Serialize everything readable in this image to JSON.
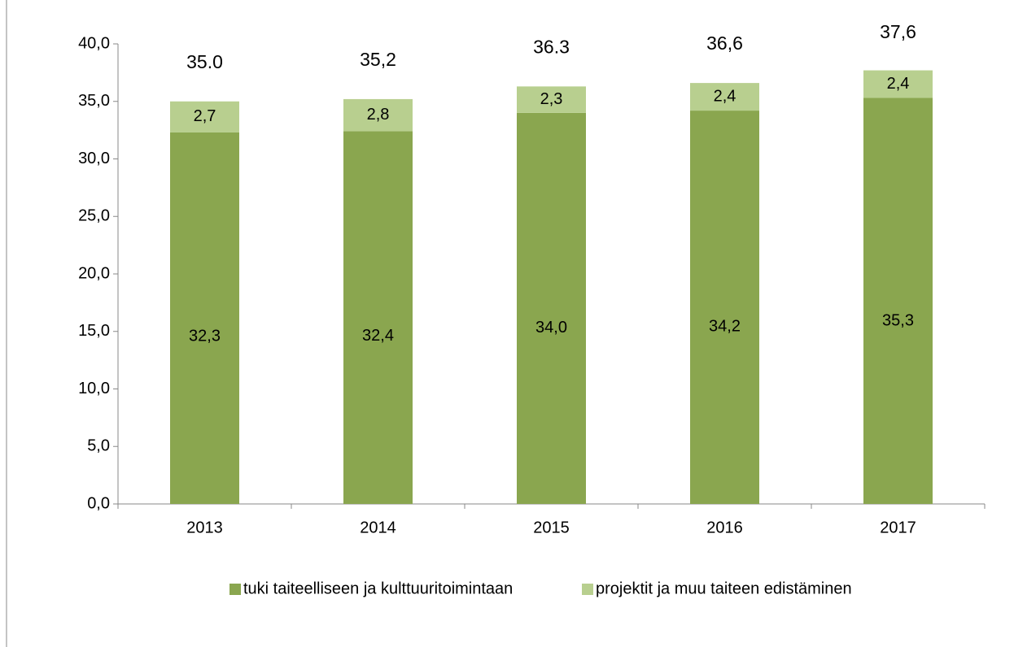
{
  "chart_data": {
    "type": "stacked_bar",
    "categories": [
      "2013",
      "2014",
      "2015",
      "2016",
      "2017"
    ],
    "series": [
      {
        "name": "tuki taiteelliseen ja kulttuuritoimintaan",
        "color": "#8aa64f",
        "values": [
          32.3,
          32.4,
          34.0,
          34.2,
          35.3
        ],
        "value_labels": [
          "32,3",
          "32,4",
          "34,0",
          "34,2",
          "35,3"
        ]
      },
      {
        "name": "projektit ja muu taiteen edistäminen",
        "color": "#b8cf8f",
        "values": [
          2.7,
          2.8,
          2.3,
          2.4,
          2.4
        ],
        "value_labels": [
          "2,7",
          "2,8",
          "2,3",
          "2,4",
          "2,4"
        ]
      }
    ],
    "totals": [
      35.0,
      35.2,
      36.3,
      36.6,
      37.6
    ],
    "total_labels": [
      "35.0",
      "35,2",
      "36.3",
      "36,6",
      "37,6"
    ],
    "ylim": [
      0,
      40
    ],
    "yticks": [
      {
        "value": 0,
        "label": "0,0"
      },
      {
        "value": 5,
        "label": "5,0"
      },
      {
        "value": 10,
        "label": "10,0"
      },
      {
        "value": 15,
        "label": "15,0"
      },
      {
        "value": 20,
        "label": "20,0"
      },
      {
        "value": 25,
        "label": "25,0"
      },
      {
        "value": 30,
        "label": "30,0"
      },
      {
        "value": 35,
        "label": "35,0"
      },
      {
        "value": 40,
        "label": "40,0"
      }
    ],
    "legend": "bottom"
  }
}
